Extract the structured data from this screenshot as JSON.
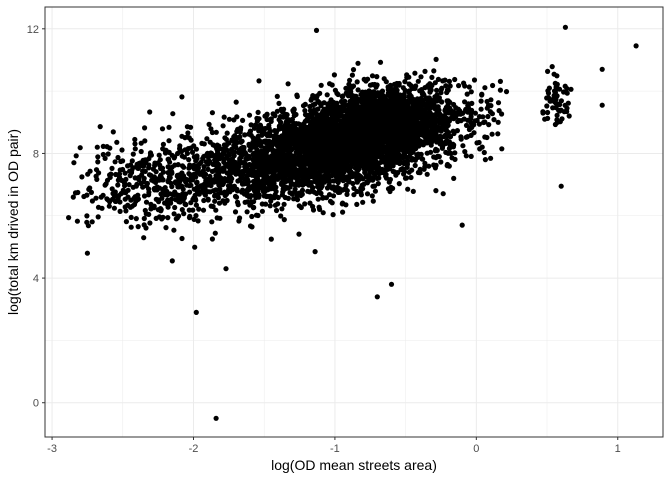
{
  "chart_data": {
    "type": "scatter",
    "title": "",
    "xlabel": "log(OD mean streets area)",
    "ylabel": "log(total km drived in OD pair)",
    "xlim": [
      -3.05,
      1.32
    ],
    "ylim": [
      -1.1,
      12.7
    ],
    "xticks": [
      -3,
      -2,
      -1,
      0,
      1
    ],
    "yticks": [
      0,
      4,
      8,
      12
    ],
    "xtick_labels": [
      "-3",
      "-2",
      "-1",
      "0",
      "1"
    ],
    "ytick_labels": [
      "0",
      "4",
      "8",
      "12"
    ],
    "grid": true,
    "legend": "none",
    "point_color": "#000000",
    "panel_border_color": "#333333",
    "grid_color": "#ebebeb",
    "notable_points": [
      {
        "x": -1.13,
        "y": 11.95
      },
      {
        "x": 0.63,
        "y": 12.05
      },
      {
        "x": 1.13,
        "y": 11.45
      },
      {
        "x": -0.6,
        "y": 3.8
      },
      {
        "x": -0.7,
        "y": 3.4
      },
      {
        "x": -1.98,
        "y": 2.9
      },
      {
        "x": -1.84,
        "y": -0.5
      },
      {
        "x": -2.75,
        "y": 4.8
      },
      {
        "x": -2.15,
        "y": 4.55
      },
      {
        "x": -1.77,
        "y": 4.3
      },
      {
        "x": 0.6,
        "y": 6.95
      },
      {
        "x": 0.89,
        "y": 10.7
      },
      {
        "x": 0.89,
        "y": 9.55
      },
      {
        "x": 0.18,
        "y": 8.15
      },
      {
        "x": -2.85,
        "y": 6.6
      },
      {
        "x": -2.68,
        "y": 8.2
      },
      {
        "x": -1.14,
        "y": 4.85
      },
      {
        "x": -0.16,
        "y": 7.2
      },
      {
        "x": -0.1,
        "y": 5.7
      },
      {
        "x": -1.45,
        "y": 5.25
      }
    ],
    "clusters": [
      {
        "x_center": -1.0,
        "y_center": 8.2,
        "x_sd": 0.45,
        "y_sd": 0.75,
        "slope": 0.9,
        "x_min": -2.9,
        "x_max": 0.2,
        "n": 3200
      },
      {
        "x_center": -0.7,
        "y_center": 8.9,
        "x_sd": 0.25,
        "y_sd": 0.6,
        "slope": 0.6,
        "x_min": -1.6,
        "x_max": -0.1,
        "n": 1200
      },
      {
        "x_center": -2.2,
        "y_center": 7.1,
        "x_sd": 0.3,
        "y_sd": 0.7,
        "slope": 0.5,
        "x_min": -2.85,
        "x_max": -1.6,
        "n": 420
      },
      {
        "x_center": 0.58,
        "y_center": 9.7,
        "x_sd": 0.06,
        "y_sd": 0.4,
        "slope": 0.0,
        "x_min": 0.45,
        "x_max": 0.7,
        "n": 60
      },
      {
        "x_center": 0.05,
        "y_center": 9.6,
        "x_sd": 0.1,
        "y_sd": 0.25,
        "slope": 0.0,
        "x_min": -0.1,
        "x_max": 0.22,
        "n": 14
      }
    ]
  }
}
